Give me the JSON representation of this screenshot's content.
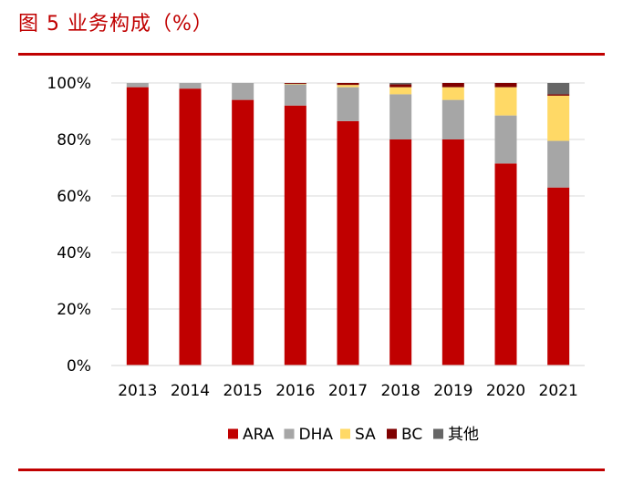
{
  "header": {
    "figure_title": "图 5  业务构成（%）"
  },
  "colors": {
    "accent": "#C00000",
    "ARA": "#C00000",
    "DHA": "#A6A6A6",
    "SA": "#FFD966",
    "BC": "#7F0000",
    "其他": "#666666"
  },
  "chart_data": {
    "type": "bar",
    "stacked": true,
    "title": "业务构成（%）",
    "xlabel": "",
    "ylabel": "",
    "ylim": [
      0,
      100
    ],
    "yticks": [
      "0%",
      "20%",
      "40%",
      "60%",
      "80%",
      "100%"
    ],
    "ytick_values": [
      0,
      20,
      40,
      60,
      80,
      100
    ],
    "categories": [
      "2013",
      "2014",
      "2015",
      "2016",
      "2017",
      "2018",
      "2019",
      "2020",
      "2021"
    ],
    "legend_position": "bottom",
    "grid": true,
    "series": [
      {
        "name": "ARA",
        "color": "#C00000",
        "values": [
          98.5,
          98.0,
          94.0,
          92.0,
          86.5,
          80.0,
          80.0,
          71.5,
          63.0
        ]
      },
      {
        "name": "DHA",
        "color": "#A6A6A6",
        "values": [
          1.5,
          2.0,
          6.0,
          7.5,
          12.0,
          16.0,
          14.0,
          17.0,
          16.5
        ]
      },
      {
        "name": "SA",
        "color": "#FFD966",
        "values": [
          0,
          0,
          0,
          0.2,
          0.8,
          2.5,
          4.5,
          10.0,
          16.0
        ]
      },
      {
        "name": "BC",
        "color": "#7F0000",
        "values": [
          0,
          0,
          0,
          0.3,
          0.7,
          1.0,
          1.5,
          1.5,
          0.5
        ]
      },
      {
        "name": "其他",
        "color": "#666666",
        "values": [
          0,
          0,
          0,
          0,
          0,
          0.5,
          0,
          0,
          4.0
        ]
      }
    ]
  }
}
